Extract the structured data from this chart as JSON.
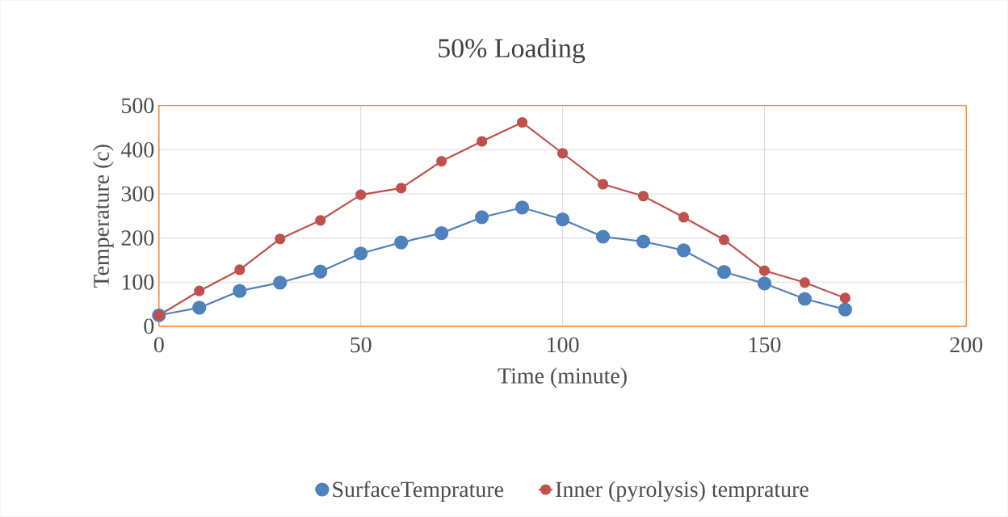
{
  "chart_data": {
    "type": "line",
    "title": "50% Loading",
    "xlabel": "Time (minute)",
    "ylabel": "Temperature (c)",
    "x": [
      0,
      10,
      20,
      30,
      40,
      50,
      60,
      70,
      80,
      90,
      100,
      110,
      120,
      130,
      140,
      150,
      160,
      170
    ],
    "series": [
      {
        "name": "SurfaceTemprature",
        "color": "#4f81bd",
        "values": [
          25,
          42,
          80,
          99,
          124,
          165,
          190,
          211,
          247,
          269,
          242,
          203,
          192,
          172,
          123,
          97,
          62,
          38
        ]
      },
      {
        "name": "Inner (pyrolysis) temprature",
        "color": "#c0504d",
        "values": [
          25,
          80,
          128,
          198,
          240,
          298,
          313,
          374,
          419,
          462,
          392,
          322,
          295,
          247,
          196,
          126,
          99,
          64
        ]
      }
    ],
    "xlim": [
      0,
      200
    ],
    "xticks": [
      0,
      50,
      100,
      150,
      200
    ],
    "ylim": [
      0,
      500
    ],
    "yticks": [
      0,
      100,
      200,
      300,
      400,
      500
    ],
    "grid": true,
    "legend": "bottom",
    "marker": "circle",
    "line_style": "solid"
  }
}
